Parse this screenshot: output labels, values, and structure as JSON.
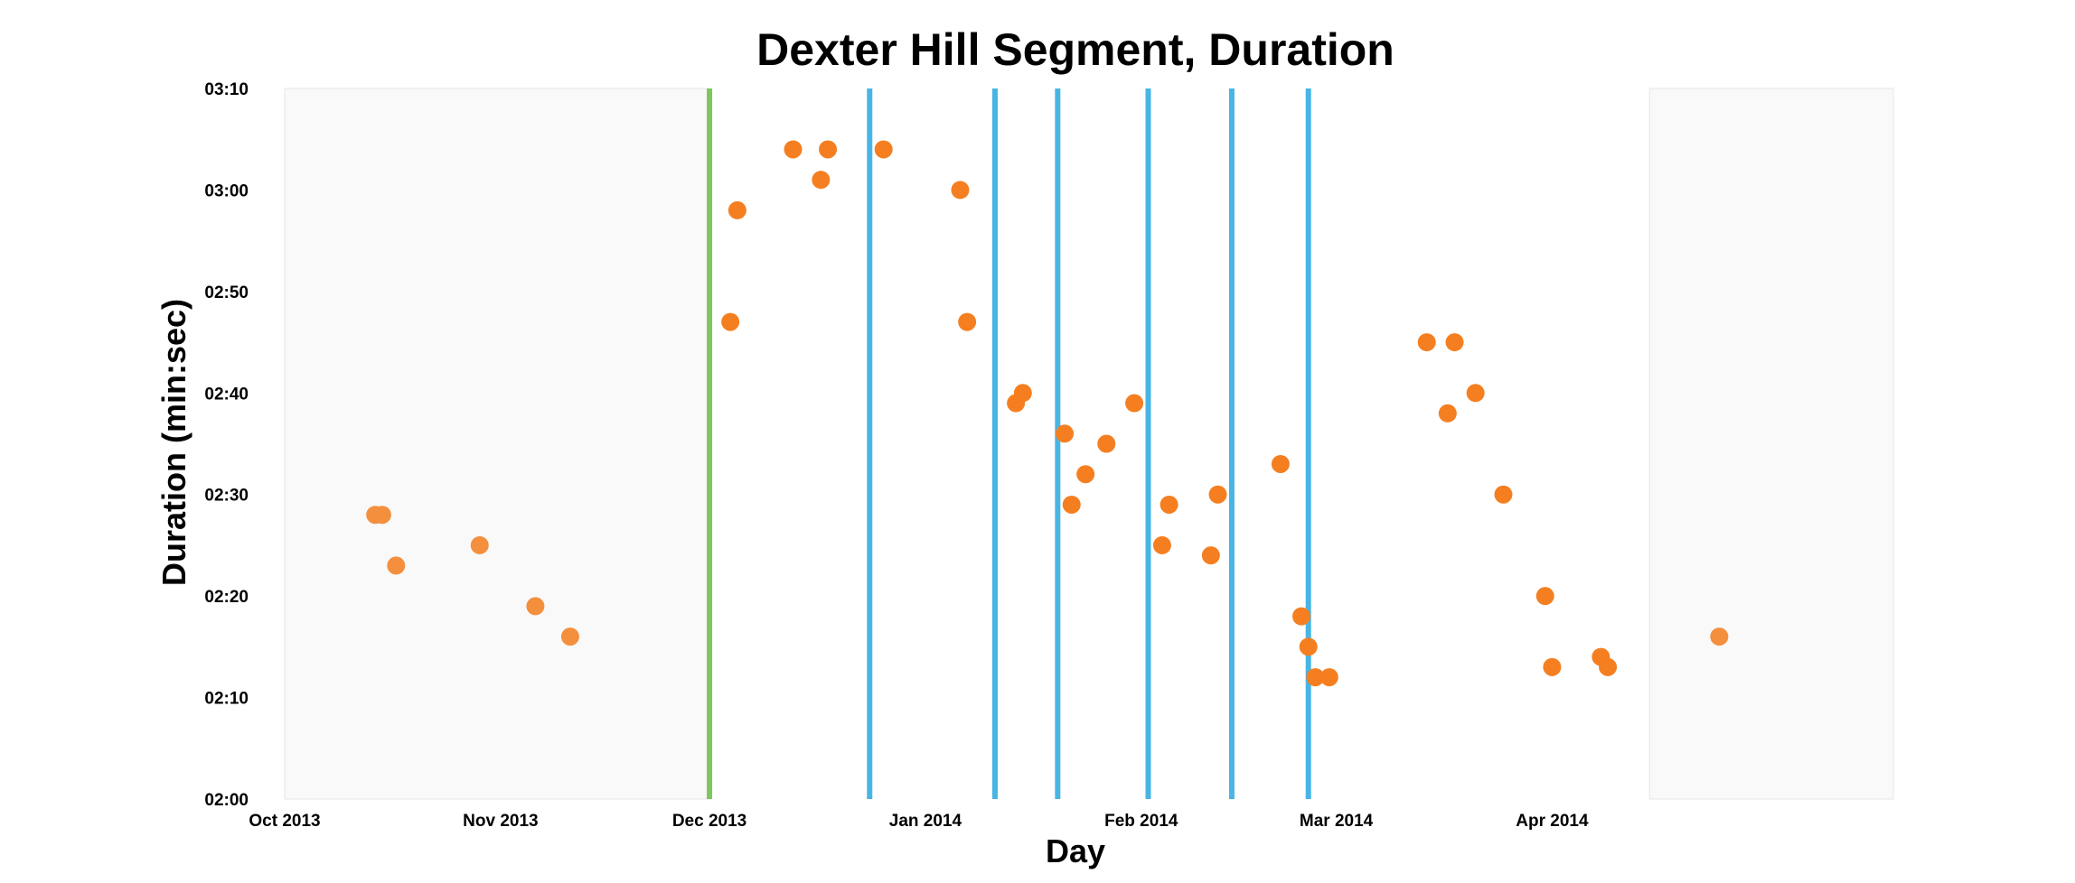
{
  "chart_data": {
    "type": "scatter",
    "title": "Dexter Hill Segment, Duration",
    "xlabel": "Day",
    "ylabel": "Duration (min:sec)",
    "x_axis": {
      "type": "date",
      "range": [
        "2013-10-01",
        "2014-05-20"
      ],
      "ticks": [
        {
          "date": "2013-10-01",
          "label": "Oct 2013"
        },
        {
          "date": "2013-11-01",
          "label": "Nov 2013"
        },
        {
          "date": "2013-12-01",
          "label": "Dec 2013"
        },
        {
          "date": "2014-01-01",
          "label": "Jan 2014"
        },
        {
          "date": "2014-02-01",
          "label": "Feb 2014"
        },
        {
          "date": "2014-03-01",
          "label": "Mar 2014"
        },
        {
          "date": "2014-04-01",
          "label": "Apr 2014"
        }
      ]
    },
    "y_axis": {
      "unit": "seconds",
      "range": [
        "02:00",
        "03:10"
      ],
      "ticks": [
        "02:00",
        "02:10",
        "02:20",
        "02:30",
        "02:40",
        "02:50",
        "03:00",
        "03:10"
      ]
    },
    "shaded_ranges": [
      {
        "from": "2013-10-01",
        "to": "2013-12-01",
        "color": "#f9f9f9"
      },
      {
        "from": "2014-04-15",
        "to": "2014-05-20",
        "color": "#f9f9f9"
      }
    ],
    "vertical_markers": [
      {
        "date": "2013-12-01",
        "color": "#7dc75e"
      },
      {
        "date": "2013-12-24",
        "color": "#48b5e4"
      },
      {
        "date": "2014-01-11",
        "color": "#48b5e4"
      },
      {
        "date": "2014-01-20",
        "color": "#48b5e4"
      },
      {
        "date": "2014-02-02",
        "color": "#48b5e4"
      },
      {
        "date": "2014-02-14",
        "color": "#48b5e4"
      },
      {
        "date": "2014-02-25",
        "color": "#48b5e4"
      }
    ],
    "series": [
      {
        "color": "#f48f3e",
        "points": [
          {
            "x": "2013-10-14",
            "y": "02:28"
          },
          {
            "x": "2013-10-15",
            "y": "02:28"
          },
          {
            "x": "2013-10-17",
            "y": "02:23"
          },
          {
            "x": "2013-10-29",
            "y": "02:25"
          },
          {
            "x": "2013-11-06",
            "y": "02:19"
          },
          {
            "x": "2013-11-11",
            "y": "02:16"
          },
          {
            "x": "2014-04-25",
            "y": "02:16"
          }
        ]
      },
      {
        "color": "#f57f20",
        "points": [
          {
            "x": "2013-12-04",
            "y": "02:47"
          },
          {
            "x": "2013-12-05",
            "y": "02:58"
          },
          {
            "x": "2013-12-13",
            "y": "03:04"
          },
          {
            "x": "2013-12-17",
            "y": "03:01"
          },
          {
            "x": "2013-12-18",
            "y": "03:04"
          },
          {
            "x": "2013-12-26",
            "y": "03:04"
          },
          {
            "x": "2014-01-06",
            "y": "03:00"
          },
          {
            "x": "2014-01-07",
            "y": "02:47"
          },
          {
            "x": "2014-01-14",
            "y": "02:39"
          },
          {
            "x": "2014-01-15",
            "y": "02:40"
          },
          {
            "x": "2014-01-21",
            "y": "02:36"
          },
          {
            "x": "2014-01-22",
            "y": "02:29"
          },
          {
            "x": "2014-01-24",
            "y": "02:32"
          },
          {
            "x": "2014-01-27",
            "y": "02:35"
          },
          {
            "x": "2014-01-31",
            "y": "02:39"
          },
          {
            "x": "2014-02-04",
            "y": "02:25"
          },
          {
            "x": "2014-02-05",
            "y": "02:29"
          },
          {
            "x": "2014-02-11",
            "y": "02:24"
          },
          {
            "x": "2014-02-12",
            "y": "02:30"
          },
          {
            "x": "2014-02-21",
            "y": "02:33"
          },
          {
            "x": "2014-02-24",
            "y": "02:18"
          },
          {
            "x": "2014-02-25",
            "y": "02:15"
          },
          {
            "x": "2014-02-26",
            "y": "02:12"
          },
          {
            "x": "2014-02-28",
            "y": "02:12"
          },
          {
            "x": "2014-03-14",
            "y": "02:45"
          },
          {
            "x": "2014-03-17",
            "y": "02:38"
          },
          {
            "x": "2014-03-18",
            "y": "02:45"
          },
          {
            "x": "2014-03-21",
            "y": "02:40"
          },
          {
            "x": "2014-03-25",
            "y": "02:30"
          },
          {
            "x": "2014-03-31",
            "y": "02:20"
          },
          {
            "x": "2014-04-01",
            "y": "02:13"
          },
          {
            "x": "2014-04-08",
            "y": "02:14"
          },
          {
            "x": "2014-04-09",
            "y": "02:13"
          }
        ]
      }
    ],
    "grid": false,
    "legend": "none"
  }
}
